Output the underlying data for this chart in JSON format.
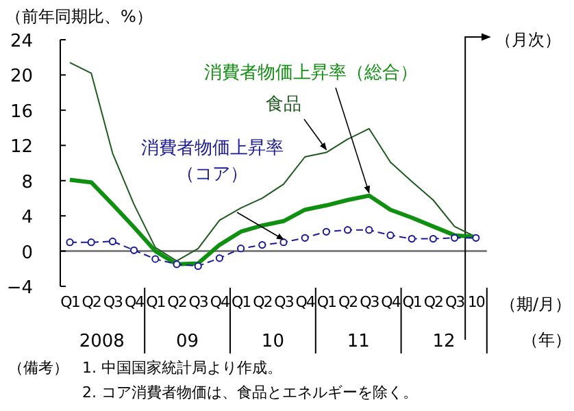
{
  "chart_data": {
    "type": "line",
    "ylabel": "（前年同期比、%）",
    "categories": [
      "Q1",
      "Q2",
      "Q3",
      "Q4",
      "Q1",
      "Q2",
      "Q3",
      "Q4",
      "Q1",
      "Q2",
      "Q3",
      "Q4",
      "Q1",
      "Q2",
      "Q3",
      "Q4",
      "Q1",
      "Q2",
      "Q3",
      "10"
    ],
    "series": [
      {
        "name": "食品",
        "color": "#1e5a1e",
        "values": [
          21.4,
          20.2,
          11.1,
          5.3,
          0.4,
          -1.1,
          0.3,
          3.5,
          4.9,
          6.0,
          7.6,
          10.7,
          11.2,
          12.7,
          13.9,
          10.1,
          7.9,
          5.8,
          2.8,
          1.6
        ]
      },
      {
        "name": "消費者物価上昇率（総合）",
        "color": "#109010",
        "values": [
          8.1,
          7.8,
          5.3,
          2.7,
          0.0,
          -1.5,
          -1.4,
          0.7,
          2.2,
          2.9,
          3.4,
          4.7,
          5.2,
          5.8,
          6.3,
          4.7,
          3.8,
          2.8,
          1.8,
          1.6
        ]
      },
      {
        "name": "消費者物価上昇率（コア）",
        "color": "#1a1a9a",
        "marker": "circle",
        "line_style": "dashed",
        "values": [
          1.0,
          1.0,
          1.1,
          0.1,
          -0.9,
          -1.5,
          -1.7,
          -0.8,
          0.3,
          0.7,
          1.0,
          1.5,
          2.2,
          2.4,
          2.4,
          1.8,
          1.4,
          1.4,
          1.5,
          1.5
        ]
      }
    ],
    "ylim": [
      -4,
      24
    ],
    "yticks": [
      -4,
      0,
      4,
      8,
      12,
      16,
      20,
      24
    ],
    "ref_lines": [
      {
        "axis": "y",
        "value": 0,
        "color": "#808080"
      }
    ],
    "grid": false,
    "legend": false,
    "annotations": [
      "（月次）",
      "（期/月）",
      "（年）",
      "2008",
      "09",
      "10",
      "11",
      "12",
      "（備考）",
      "1.  中国国家統計局より作成。",
      "2.  コア消費者物価は、食品とエネルギーを除く。"
    ]
  }
}
